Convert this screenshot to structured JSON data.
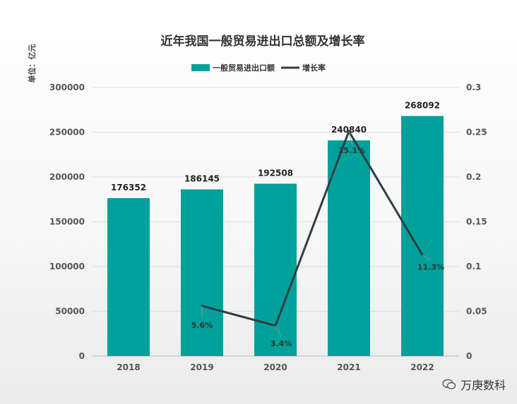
{
  "chart_data": {
    "type": "bar",
    "title": "近年我国一般贸易进出口总额及增长率",
    "unit_label": "单位：亿元",
    "categories": [
      "2018",
      "2019",
      "2020",
      "2021",
      "2022"
    ],
    "series": [
      {
        "name": "一般贸易进出口额",
        "type": "bar",
        "axis": "left",
        "color": "#00a19a",
        "values": [
          176352,
          186145,
          192508,
          240840,
          268092
        ],
        "labels": [
          "176352",
          "186145",
          "192508",
          "240840",
          "268092"
        ]
      },
      {
        "name": "增长率",
        "type": "line",
        "axis": "right",
        "color": "#2f3e46",
        "values": [
          null,
          0.056,
          0.034,
          0.251,
          0.113
        ],
        "labels": [
          "",
          "5.6%",
          "3.4%",
          "25.1%",
          "11.3%"
        ]
      }
    ],
    "y_left": {
      "min": 0,
      "max": 300000,
      "ticks": [
        "0",
        "50000",
        "100000",
        "150000",
        "200000",
        "250000",
        "300000"
      ]
    },
    "y_right": {
      "min": 0,
      "max": 0.3,
      "ticks": [
        "0",
        "0.05",
        "0.1",
        "0.15",
        "0.2",
        "0.25",
        "0.3"
      ]
    },
    "grid": true,
    "legend_position": "top"
  },
  "watermark": {
    "text": "万庚数科",
    "icon": "wechat-icon"
  }
}
